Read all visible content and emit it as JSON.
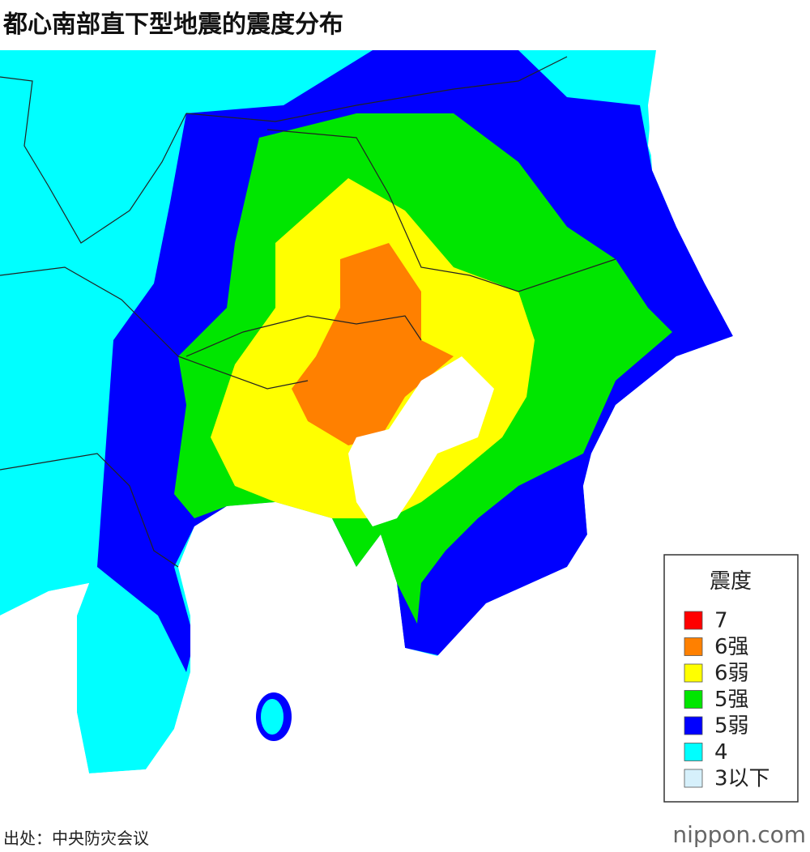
{
  "title": "都心南部直下型地震的震度分布",
  "legend": {
    "title": "震度",
    "items": [
      {
        "label": "7",
        "color": "#ff0000"
      },
      {
        "label": "6强",
        "color": "#ff8000"
      },
      {
        "label": "6弱",
        "color": "#ffff00"
      },
      {
        "label": "5强",
        "color": "#00e600"
      },
      {
        "label": "5弱",
        "color": "#0000ff"
      },
      {
        "label": "4",
        "color": "#00ffff"
      },
      {
        "label": "3以下",
        "color": "#d6f0fb"
      }
    ]
  },
  "source": "出处：中央防灾会议",
  "logo": {
    "text": "nippon",
    "suffix": ".com"
  }
}
